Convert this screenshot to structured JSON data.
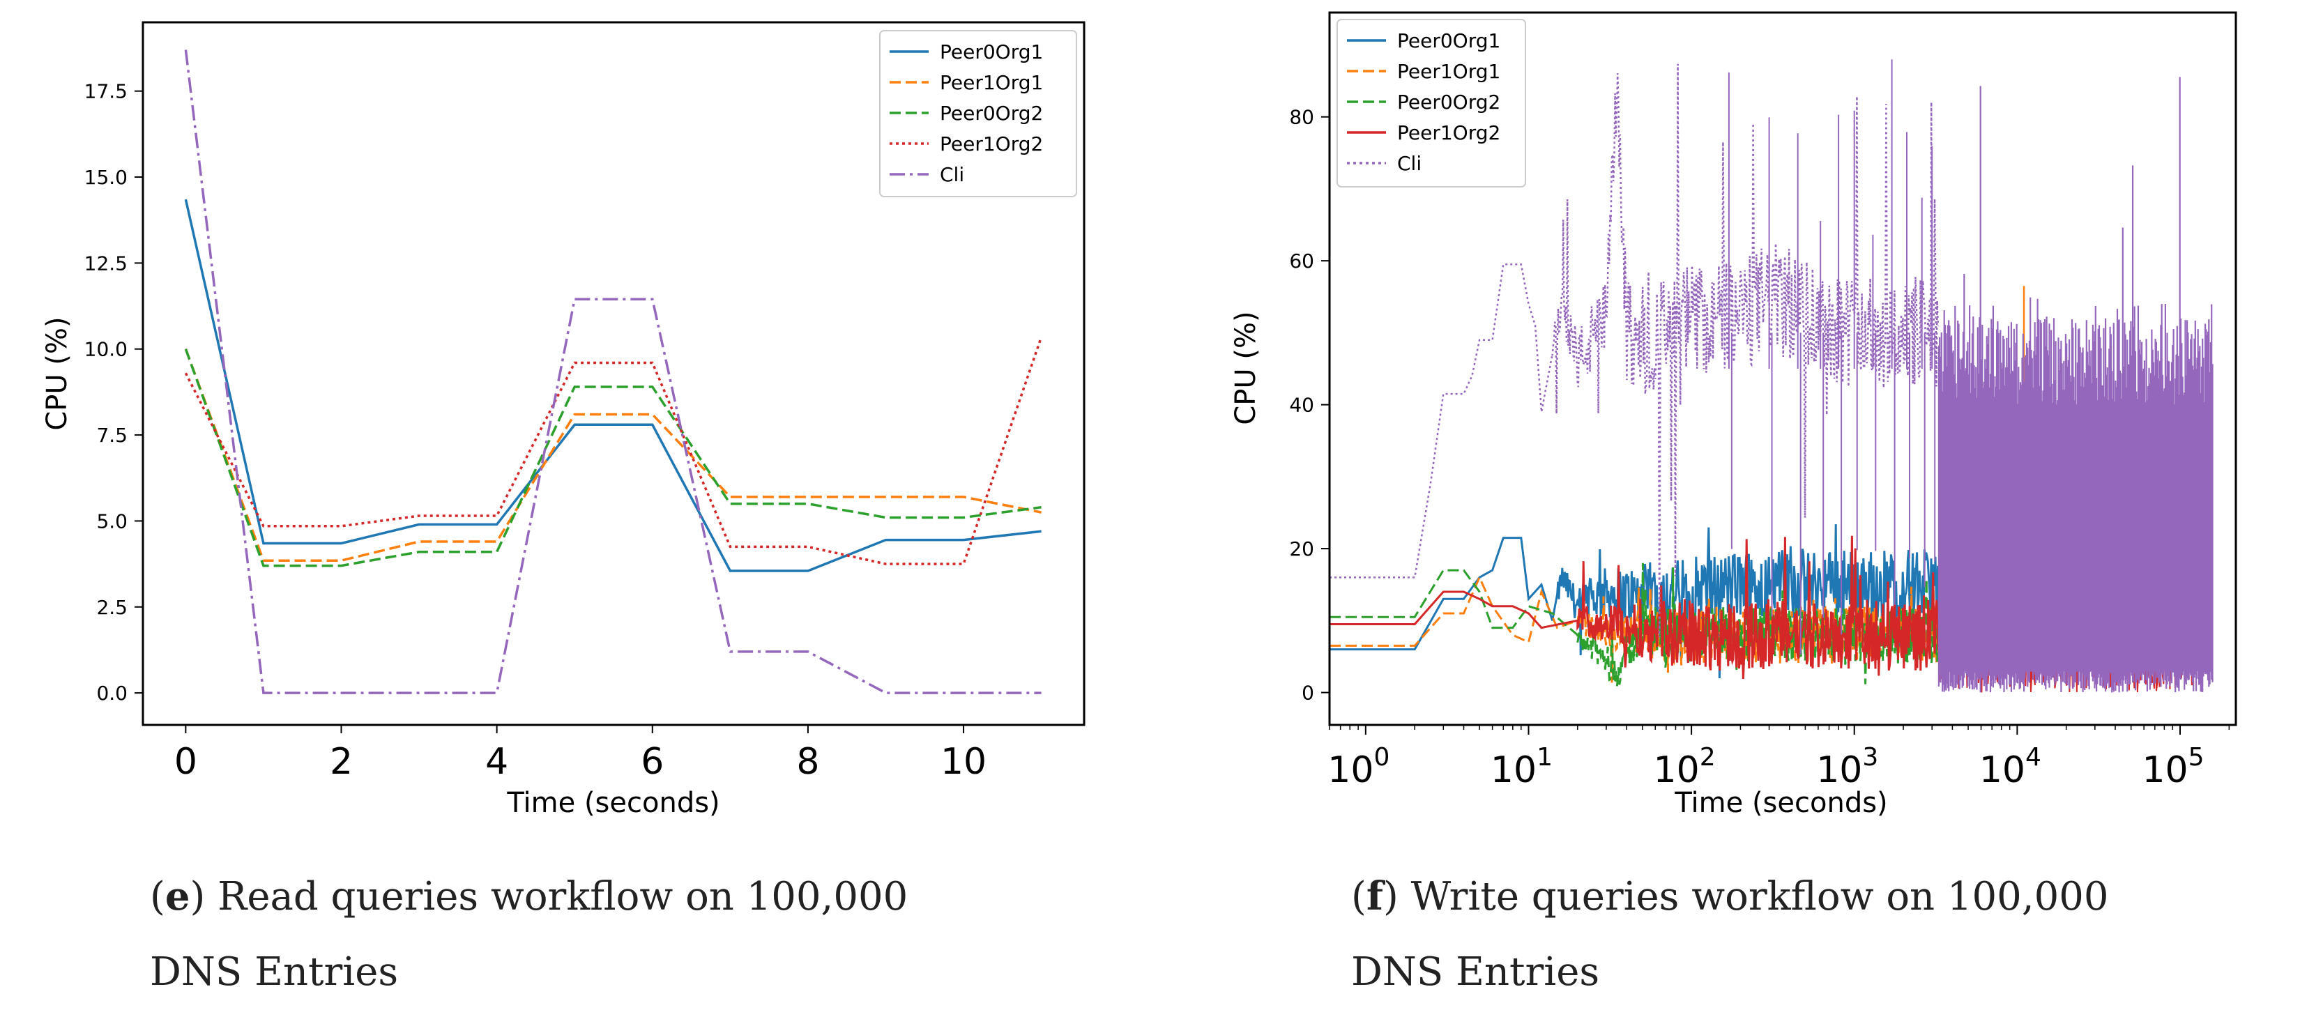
{
  "chart_data": [
    {
      "type": "line",
      "caption_tag": "(e)",
      "caption_bold": "e",
      "caption_line1": "Read queries workflow on 100,000",
      "caption_line2": "DNS Entries",
      "xlabel": "Time (seconds)",
      "ylabel": "CPU (%)",
      "xlim": [
        -0.55,
        11.55
      ],
      "ylim": [
        -0.93,
        19.5
      ],
      "xticks": [
        0,
        2,
        4,
        6,
        8,
        10
      ],
      "xtick_labels": [
        "0",
        "2",
        "4",
        "6",
        "8",
        "10"
      ],
      "yticks": [
        0,
        2.5,
        5,
        7.5,
        10,
        12.5,
        15,
        17.5
      ],
      "ytick_labels": [
        "0.0",
        "2.5",
        "5.0",
        "7.5",
        "10.0",
        "12.5",
        "15.0",
        "17.5"
      ],
      "legend_position": "top-right",
      "x": [
        0,
        1,
        2,
        3,
        4,
        5,
        6,
        7,
        8,
        9,
        10,
        11
      ],
      "series": [
        {
          "name": "Peer0Org1",
          "color": "#1f77b4",
          "style": "solid",
          "values": [
            14.35,
            4.35,
            4.35,
            4.9,
            4.9,
            7.8,
            7.8,
            3.55,
            3.55,
            4.45,
            4.45,
            4.7
          ]
        },
        {
          "name": "Peer1Org1",
          "color": "#ff7f0e",
          "style": "dashed",
          "values": [
            10.0,
            3.85,
            3.85,
            4.4,
            4.4,
            8.1,
            8.1,
            5.7,
            5.7,
            5.7,
            5.7,
            5.25
          ]
        },
        {
          "name": "Peer0Org2",
          "color": "#2ca02c",
          "style": "dashed",
          "values": [
            10.0,
            3.7,
            3.7,
            4.1,
            4.1,
            8.9,
            8.9,
            5.5,
            5.5,
            5.1,
            5.1,
            5.4
          ]
        },
        {
          "name": "Peer1Org2",
          "color": "#d62728",
          "style": "dotted",
          "values": [
            9.3,
            4.85,
            4.85,
            5.15,
            5.15,
            9.6,
            9.6,
            4.25,
            4.25,
            3.75,
            3.75,
            10.35
          ]
        },
        {
          "name": "Cli",
          "color": "#9467bd",
          "style": "dashdot",
          "values": [
            18.7,
            0,
            0,
            0,
            0,
            11.45,
            11.45,
            1.2,
            1.2,
            0,
            0,
            0
          ]
        }
      ]
    },
    {
      "type": "line",
      "caption_tag": "(f)",
      "caption_bold": "f",
      "caption_line1": "Write queries workflow on 100,000",
      "caption_line2": "DNS Entries",
      "xlabel": "Time (seconds)",
      "ylabel": "CPU (%)",
      "xscale": "log",
      "xlim": [
        0.6,
        220000
      ],
      "ylim": [
        -4.5,
        94.5
      ],
      "xticks": [
        1,
        10,
        100,
        1000,
        10000,
        100000
      ],
      "xtick_bases": [
        "10",
        "10",
        "10",
        "10",
        "10",
        "10"
      ],
      "xtick_exponents": [
        "0",
        "1",
        "2",
        "3",
        "4",
        "5"
      ],
      "yticks": [
        0,
        20,
        40,
        60,
        80
      ],
      "ytick_labels": [
        "0",
        "20",
        "40",
        "60",
        "80"
      ],
      "legend_position": "top-left",
      "series": [
        {
          "name": "Peer0Org1",
          "color": "#1f77b4",
          "style": "solid",
          "points": [
            [
              0.6,
              6
            ],
            [
              2,
              6
            ],
            [
              3,
              13
            ],
            [
              4,
              13
            ],
            [
              5,
              16
            ],
            [
              6,
              17
            ],
            [
              7,
              21.5
            ],
            [
              9,
              21.5
            ],
            [
              10,
              13
            ],
            [
              12,
              15
            ],
            [
              14,
              10
            ],
            [
              16,
              16
            ],
            [
              20,
              12
            ],
            [
              30,
              14
            ],
            [
              50,
              13
            ],
            [
              100,
              14
            ],
            [
              200,
              15
            ],
            [
              500,
              15
            ],
            [
              1000,
              15
            ],
            [
              2000,
              15
            ],
            [
              3300,
              15
            ]
          ],
          "noise": {
            "from": 15,
            "to": 3300,
            "center": 15,
            "amp": 5,
            "spike_max": 24
          }
        },
        {
          "name": "Peer1Org1",
          "color": "#ff7f0e",
          "style": "dashed",
          "points": [
            [
              0.6,
              6.5
            ],
            [
              2,
              6.5
            ],
            [
              3,
              11
            ],
            [
              4,
              11
            ],
            [
              5,
              16
            ],
            [
              6,
              12
            ],
            [
              8,
              8
            ],
            [
              10,
              7
            ],
            [
              12,
              14
            ],
            [
              15,
              9
            ],
            [
              20,
              10
            ],
            [
              30,
              8
            ],
            [
              50,
              8
            ],
            [
              100,
              8
            ],
            [
              200,
              8
            ],
            [
              500,
              8
            ],
            [
              1000,
              8
            ],
            [
              3300,
              8
            ]
          ],
          "noise": {
            "from": 20,
            "to": 3300,
            "center": 8,
            "amp": 4,
            "spike_max": 15
          },
          "spike": {
            "x": 11000,
            "y": 56.5
          }
        },
        {
          "name": "Peer0Org2",
          "color": "#2ca02c",
          "style": "dashed",
          "points": [
            [
              0.6,
              10.5
            ],
            [
              2,
              10.5
            ],
            [
              3,
              17
            ],
            [
              4,
              17
            ],
            [
              5,
              14
            ],
            [
              6,
              9
            ],
            [
              8,
              9
            ],
            [
              10,
              12
            ],
            [
              14,
              11
            ],
            [
              20,
              8
            ],
            [
              35,
              3
            ],
            [
              50,
              9
            ],
            [
              100,
              8
            ],
            [
              300,
              8
            ],
            [
              1000,
              8
            ],
            [
              3300,
              8
            ]
          ],
          "noise": {
            "from": 20,
            "to": 3300,
            "center": 8,
            "amp": 4,
            "spike_max": 20
          }
        },
        {
          "name": "Peer1Org2",
          "color": "#d62728",
          "style": "solid",
          "points": [
            [
              0.6,
              9.5
            ],
            [
              2,
              9.5
            ],
            [
              3,
              14
            ],
            [
              4,
              14
            ],
            [
              5,
              13
            ],
            [
              6,
              12
            ],
            [
              8,
              12
            ],
            [
              10,
              11
            ],
            [
              12,
              9
            ],
            [
              20,
              10
            ],
            [
              50,
              9
            ],
            [
              100,
              8
            ],
            [
              300,
              8
            ],
            [
              1000,
              8
            ],
            [
              3300,
              8
            ]
          ],
          "noise": {
            "from": 20,
            "to": 3300,
            "center": 8,
            "amp": 5,
            "spike_max": 22
          },
          "tail": {
            "from": 3300,
            "to": 160000,
            "lo": 0,
            "hi": 12
          }
        },
        {
          "name": "Cli",
          "color": "#9467bd",
          "style": "dotted",
          "points": [
            [
              0.6,
              16
            ],
            [
              2,
              16
            ],
            [
              2.5,
              29
            ],
            [
              3,
              41.5
            ],
            [
              4,
              41.5
            ],
            [
              4.5,
              44
            ],
            [
              5,
              49
            ],
            [
              6,
              49
            ],
            [
              7,
              59.5
            ],
            [
              9,
              59.5
            ],
            [
              10,
              54
            ],
            [
              11,
              51
            ],
            [
              12,
              39
            ],
            [
              14,
              47
            ],
            [
              16,
              55
            ],
            [
              20,
              46
            ],
            [
              30,
              52
            ],
            [
              35,
              84.5
            ],
            [
              40,
              50
            ],
            [
              60,
              49
            ],
            [
              100,
              52
            ],
            [
              200,
              52
            ],
            [
              300,
              55
            ],
            [
              1000,
              50
            ],
            [
              3300,
              50
            ]
          ],
          "noise": {
            "from": 14,
            "to": 3300,
            "center": 50,
            "amp": 8,
            "spike_max": 90
          },
          "band": {
            "from": 3300,
            "to": 160000,
            "lo": 0,
            "hi": 55,
            "spike_max": 89
          }
        }
      ]
    }
  ]
}
